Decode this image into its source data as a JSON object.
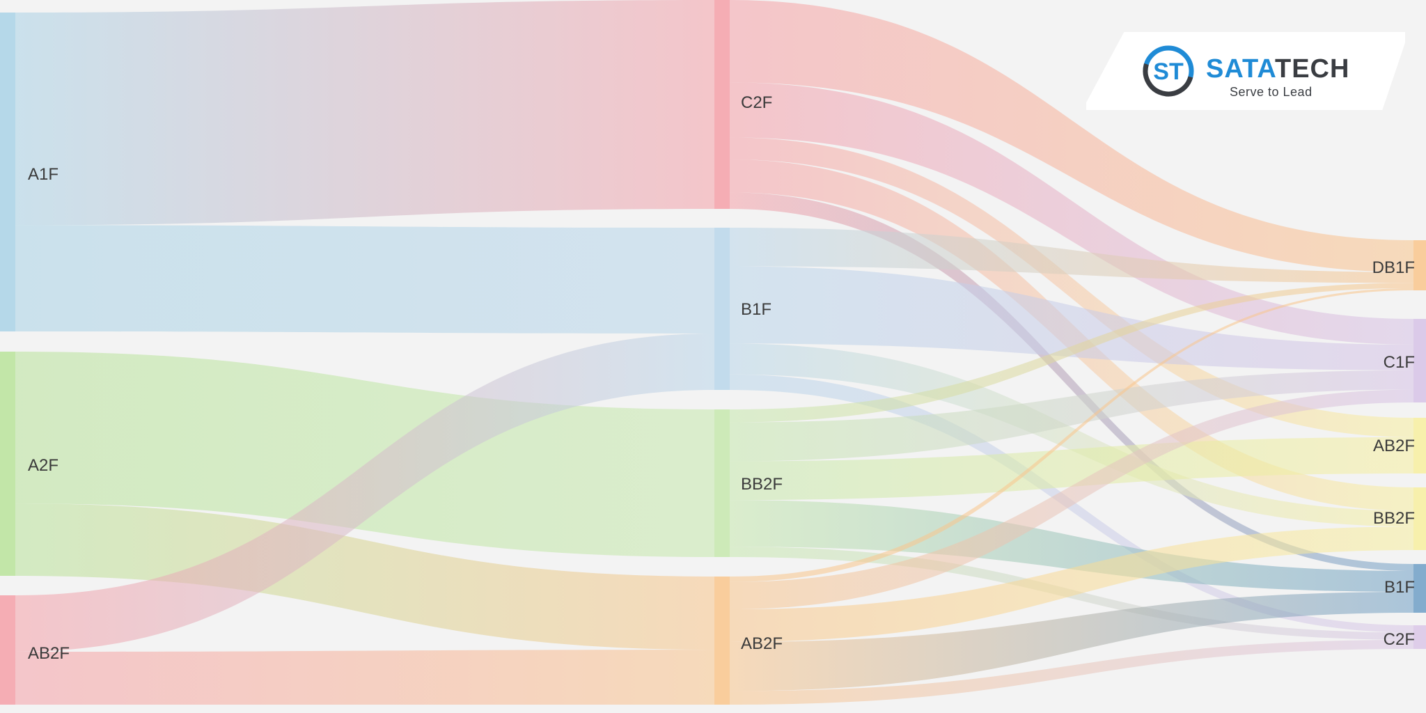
{
  "diagram": {
    "type": "sankey",
    "colors": {
      "background": "#f3f3f3",
      "A1F": "#a9d2e6",
      "A2F": "#b8e39a",
      "AB2F_left": "#f5a0a8",
      "C2F": "#f5a0a8",
      "B1F": "#b9d6ea",
      "BB2F": "#c6e8ad",
      "AB2F_mid": "#f9c58c",
      "DB1F": "#f9c58c",
      "C1F": "#d6c2e6",
      "AB2F_right": "#f7ef9f",
      "BB2F_right": "#f7ef9f",
      "B1F_right": "#6f9fc5",
      "C2F_right": "#d9c6e6"
    },
    "nodes": {
      "left": [
        {
          "id": "A1F",
          "label": "A1F"
        },
        {
          "id": "A2F",
          "label": "A2F"
        },
        {
          "id": "AB2F_L",
          "label": "AB2F"
        }
      ],
      "middle": [
        {
          "id": "C2F_M",
          "label": "C2F"
        },
        {
          "id": "B1F_M",
          "label": "B1F"
        },
        {
          "id": "BB2F_M",
          "label": "BB2F"
        },
        {
          "id": "AB2F_M",
          "label": "AB2F"
        }
      ],
      "right": [
        {
          "id": "DB1F_R",
          "label": "DB1F"
        },
        {
          "id": "C1F_R",
          "label": "C1F"
        },
        {
          "id": "AB2F_R",
          "label": "AB2F"
        },
        {
          "id": "BB2F_R",
          "label": "BB2F"
        },
        {
          "id": "B1F_R",
          "label": "B1F"
        },
        {
          "id": "C2F_R",
          "label": "C2F"
        }
      ]
    },
    "links": [
      {
        "source": "A1F",
        "target": "C2F_M",
        "value": 300
      },
      {
        "source": "A1F",
        "target": "B1F_M",
        "value": 150
      },
      {
        "source": "A2F",
        "target": "BB2F_M",
        "value": 210
      },
      {
        "source": "A2F",
        "target": "AB2F_M",
        "value": 100
      },
      {
        "source": "AB2F_L",
        "target": "B1F_M",
        "value": 80
      },
      {
        "source": "AB2F_L",
        "target": "AB2F_M",
        "value": 75
      },
      {
        "source": "C2F_M",
        "target": "DB1F_R",
        "value": 30
      },
      {
        "source": "C2F_M",
        "target": "C1F_R",
        "value": 20
      },
      {
        "source": "C2F_M",
        "target": "AB2F_R",
        "value": 8
      },
      {
        "source": "C2F_M",
        "target": "BB2F_R",
        "value": 12
      },
      {
        "source": "C2F_M",
        "target": "B1F_R",
        "value": 6
      },
      {
        "source": "B1F_M",
        "target": "DB1F_R",
        "value": 10
      },
      {
        "source": "B1F_M",
        "target": "C1F_R",
        "value": 20
      },
      {
        "source": "B1F_M",
        "target": "BB2F_R",
        "value": 8
      },
      {
        "source": "B1F_M",
        "target": "C2F_R",
        "value": 4
      },
      {
        "source": "BB2F_M",
        "target": "DB1F_R",
        "value": 5
      },
      {
        "source": "BB2F_M",
        "target": "C1F_R",
        "value": 15
      },
      {
        "source": "BB2F_M",
        "target": "AB2F_R",
        "value": 15
      },
      {
        "source": "BB2F_M",
        "target": "B1F_R",
        "value": 18
      },
      {
        "source": "BB2F_M",
        "target": "C2F_R",
        "value": 4
      },
      {
        "source": "AB2F_M",
        "target": "DB1F_R",
        "value": 2
      },
      {
        "source": "AB2F_M",
        "target": "C1F_R",
        "value": 10
      },
      {
        "source": "AB2F_M",
        "target": "BB2F_R",
        "value": 12
      },
      {
        "source": "AB2F_M",
        "target": "B1F_R",
        "value": 18
      },
      {
        "source": "AB2F_M",
        "target": "C2F_R",
        "value": 5
      }
    ]
  },
  "logo": {
    "brand_part1": "SATA",
    "brand_part2": "TECH",
    "tagline": "Serve to Lead",
    "mark_letters": "ST",
    "brand_blue": "#1f8bd6",
    "brand_dark": "#3a3d42"
  }
}
